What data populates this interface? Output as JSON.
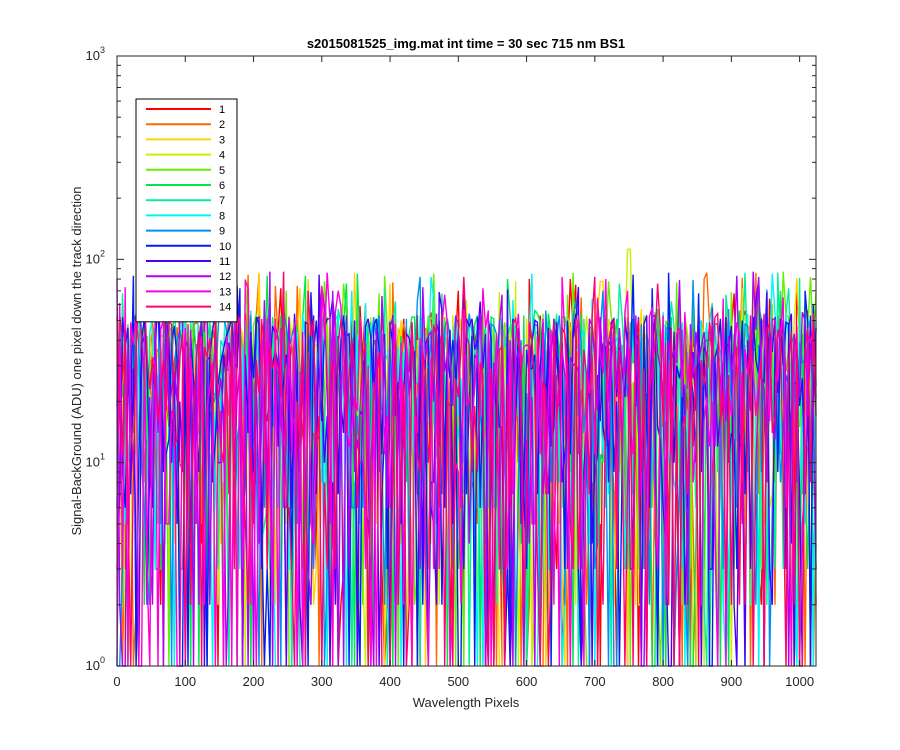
{
  "chart_data": {
    "type": "line",
    "title": "s2015081525_img.mat int time = 30 sec  715 nm BS1",
    "xlabel": "Wavelength Pixels",
    "ylabel": "Signal-BackGround (ADU) one pixel down the track direction",
    "xlim": [
      0,
      1024
    ],
    "ylim": [
      1,
      1000
    ],
    "yscale": "log",
    "x_ticks": [
      "0",
      "100",
      "200",
      "300",
      "400",
      "500",
      "600",
      "700",
      "800",
      "900",
      "1000"
    ],
    "y_ticks": [
      {
        "base": "10",
        "exp": "0"
      },
      {
        "base": "10",
        "exp": "1"
      },
      {
        "base": "10",
        "exp": "2"
      },
      {
        "base": "10",
        "exp": "3"
      }
    ],
    "legend_position": "top-left",
    "grid": false,
    "noise_floor_min": 1,
    "noise_typical_range": [
      2,
      60
    ],
    "peak_max": 112,
    "peak_x": 750,
    "series": [
      {
        "name": "1",
        "color": "#ff0000"
      },
      {
        "name": "2",
        "color": "#ff6a00"
      },
      {
        "name": "3",
        "color": "#ffd400"
      },
      {
        "name": "4",
        "color": "#c8f000"
      },
      {
        "name": "5",
        "color": "#66ee00"
      },
      {
        "name": "6",
        "color": "#00e64d"
      },
      {
        "name": "7",
        "color": "#00f0a0"
      },
      {
        "name": "8",
        "color": "#00f5f5"
      },
      {
        "name": "9",
        "color": "#0090f0"
      },
      {
        "name": "10",
        "color": "#0020f0"
      },
      {
        "name": "11",
        "color": "#4a00f5"
      },
      {
        "name": "12",
        "color": "#b000f5"
      },
      {
        "name": "13",
        "color": "#ff00dc"
      },
      {
        "name": "14",
        "color": "#ff0070"
      }
    ]
  }
}
